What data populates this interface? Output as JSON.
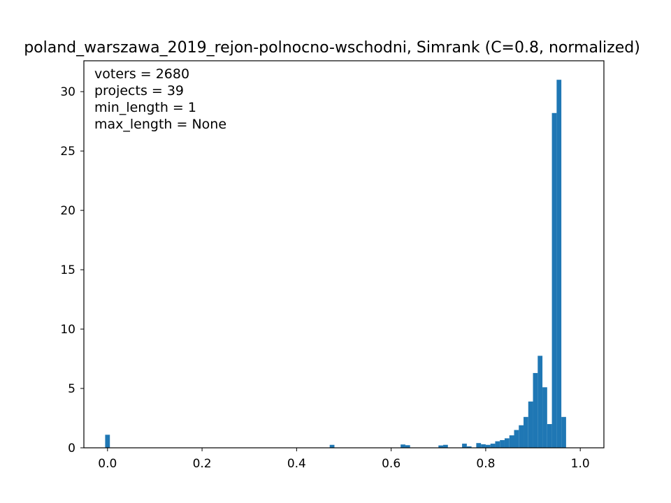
{
  "chart_data": {
    "type": "bar",
    "title": "poland_warszawa_2019_rejon-polnocno-wschodni, Simrank (C=0.8, normalized)",
    "xlabel": "",
    "ylabel": "",
    "xlim": [
      -0.05,
      1.05
    ],
    "ylim": [
      0,
      32.6
    ],
    "grid": false,
    "color": "#1f77b4",
    "bin_width": 0.01,
    "x_ticks": [
      {
        "value": 0.0,
        "label": "0.0"
      },
      {
        "value": 0.2,
        "label": "0.2"
      },
      {
        "value": 0.4,
        "label": "0.4"
      },
      {
        "value": 0.6,
        "label": "0.6"
      },
      {
        "value": 0.8,
        "label": "0.8"
      },
      {
        "value": 1.0,
        "label": "1.0"
      }
    ],
    "y_ticks": [
      {
        "value": 0,
        "label": "0"
      },
      {
        "value": 5,
        "label": "5"
      },
      {
        "value": 10,
        "label": "10"
      },
      {
        "value": 15,
        "label": "15"
      },
      {
        "value": 20,
        "label": "20"
      },
      {
        "value": 25,
        "label": "25"
      },
      {
        "value": 30,
        "label": "30"
      }
    ],
    "annotations": [
      "voters = 2680",
      "projects = 39",
      "min_length = 1",
      "max_length = None"
    ],
    "bars": [
      {
        "x": 0.0,
        "value": 1.1
      },
      {
        "x": 0.475,
        "value": 0.25
      },
      {
        "x": 0.625,
        "value": 0.28
      },
      {
        "x": 0.635,
        "value": 0.22
      },
      {
        "x": 0.705,
        "value": 0.2
      },
      {
        "x": 0.715,
        "value": 0.25
      },
      {
        "x": 0.755,
        "value": 0.35
      },
      {
        "x": 0.765,
        "value": 0.12
      },
      {
        "x": 0.785,
        "value": 0.4
      },
      {
        "x": 0.795,
        "value": 0.3
      },
      {
        "x": 0.805,
        "value": 0.25
      },
      {
        "x": 0.815,
        "value": 0.35
      },
      {
        "x": 0.825,
        "value": 0.55
      },
      {
        "x": 0.835,
        "value": 0.65
      },
      {
        "x": 0.845,
        "value": 0.8
      },
      {
        "x": 0.855,
        "value": 1.05
      },
      {
        "x": 0.865,
        "value": 1.5
      },
      {
        "x": 0.875,
        "value": 1.9
      },
      {
        "x": 0.885,
        "value": 2.6
      },
      {
        "x": 0.895,
        "value": 3.9
      },
      {
        "x": 0.905,
        "value": 6.3
      },
      {
        "x": 0.915,
        "value": 7.75
      },
      {
        "x": 0.925,
        "value": 5.1
      },
      {
        "x": 0.935,
        "value": 2.0
      },
      {
        "x": 0.945,
        "value": 28.2
      },
      {
        "x": 0.955,
        "value": 31.0
      },
      {
        "x": 0.965,
        "value": 2.6
      }
    ]
  }
}
